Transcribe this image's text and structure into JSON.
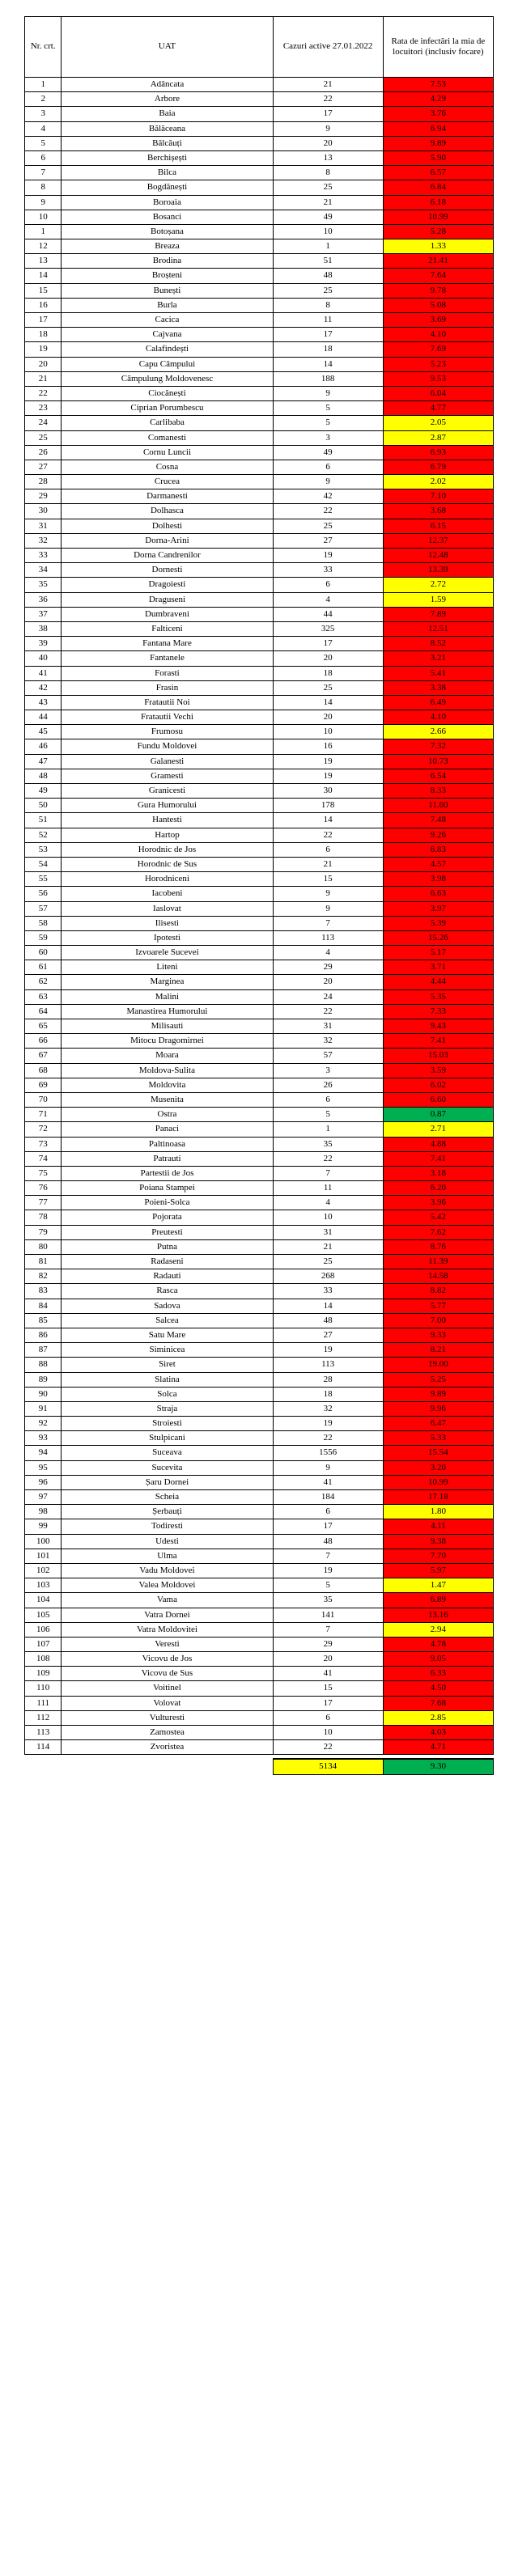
{
  "headers": {
    "nr": "Nr. crt.",
    "uat": "UAT",
    "cases": "Cazuri active 27.01.2022",
    "rate": "Rata de infectări la mia de locuitori (inclusiv focare)"
  },
  "colors": {
    "red": "#ff0000",
    "yellow": "#ffff00",
    "green": "#00b050"
  },
  "total": {
    "cases": 5134,
    "rate": "9.30",
    "casesColor": "yellow",
    "rateColor": "green"
  },
  "rows": [
    {
      "nr": 1,
      "uat": "Adâncata",
      "cases": 21,
      "rate": "7.53",
      "c": "red"
    },
    {
      "nr": 2,
      "uat": "Arbore",
      "cases": 22,
      "rate": "4.29",
      "c": "red"
    },
    {
      "nr": 3,
      "uat": "Baia",
      "cases": 17,
      "rate": "3.76",
      "c": "red"
    },
    {
      "nr": 4,
      "uat": "Bălăceana",
      "cases": 9,
      "rate": "6.94",
      "c": "red"
    },
    {
      "nr": 5,
      "uat": "Bălcăuți",
      "cases": 20,
      "rate": "9.89",
      "c": "red"
    },
    {
      "nr": 6,
      "uat": "Berchișești",
      "cases": 13,
      "rate": "5.90",
      "c": "red"
    },
    {
      "nr": 7,
      "uat": "Bilca",
      "cases": 8,
      "rate": "6.57",
      "c": "red"
    },
    {
      "nr": 8,
      "uat": "Bogdănești",
      "cases": 25,
      "rate": "6.84",
      "c": "red"
    },
    {
      "nr": 9,
      "uat": "Boroaia",
      "cases": 21,
      "rate": "6.18",
      "c": "red"
    },
    {
      "nr": 10,
      "uat": "Bosanci",
      "cases": 49,
      "rate": "10.99",
      "c": "red"
    },
    {
      "nr": 1,
      "uat": "Botoșana",
      "cases": 10,
      "rate": "5.28",
      "c": "red"
    },
    {
      "nr": 12,
      "uat": "Breaza",
      "cases": 1,
      "rate": "1.33",
      "c": "yellow"
    },
    {
      "nr": 13,
      "uat": "Brodina",
      "cases": 51,
      "rate": "21.41",
      "c": "red"
    },
    {
      "nr": 14,
      "uat": "Broșteni",
      "cases": 48,
      "rate": "7.64",
      "c": "red"
    },
    {
      "nr": 15,
      "uat": "Bunești",
      "cases": 25,
      "rate": "9.78",
      "c": "red"
    },
    {
      "nr": 16,
      "uat": "Burla",
      "cases": 8,
      "rate": "5.08",
      "c": "red"
    },
    {
      "nr": 17,
      "uat": "Cacica",
      "cases": 11,
      "rate": "3.69",
      "c": "red"
    },
    {
      "nr": 18,
      "uat": "Cajvana",
      "cases": 17,
      "rate": "4.10",
      "c": "red"
    },
    {
      "nr": 19,
      "uat": "Calafindești",
      "cases": 18,
      "rate": "7.69",
      "c": "red"
    },
    {
      "nr": 20,
      "uat": "Capu Câmpului",
      "cases": 14,
      "rate": "5.23",
      "c": "red"
    },
    {
      "nr": 21,
      "uat": "Câmpulung Moldovenesc",
      "cases": 188,
      "rate": "9.53",
      "c": "red"
    },
    {
      "nr": 22,
      "uat": "Ciocănești",
      "cases": 9,
      "rate": "6.04",
      "c": "red"
    },
    {
      "nr": 23,
      "uat": "Ciprian Porumbescu",
      "cases": 5,
      "rate": "4.77",
      "c": "red"
    },
    {
      "nr": 24,
      "uat": "Carlibaba",
      "cases": 5,
      "rate": "2.05",
      "c": "yellow"
    },
    {
      "nr": 25,
      "uat": "Comanesti",
      "cases": 3,
      "rate": "2.87",
      "c": "yellow"
    },
    {
      "nr": 26,
      "uat": "Cornu Luncii",
      "cases": 49,
      "rate": "6.93",
      "c": "red"
    },
    {
      "nr": 27,
      "uat": "Cosna",
      "cases": 6,
      "rate": "6.79",
      "c": "red"
    },
    {
      "nr": 28,
      "uat": "Crucea",
      "cases": 9,
      "rate": "2.02",
      "c": "yellow"
    },
    {
      "nr": 29,
      "uat": "Darmanesti",
      "cases": 42,
      "rate": "7.10",
      "c": "red"
    },
    {
      "nr": 30,
      "uat": "Dolhasca",
      "cases": 22,
      "rate": "3.68",
      "c": "red"
    },
    {
      "nr": 31,
      "uat": "Dolhesti",
      "cases": 25,
      "rate": "6.15",
      "c": "red"
    },
    {
      "nr": 32,
      "uat": "Dorna-Arini",
      "cases": 27,
      "rate": "12.37",
      "c": "red"
    },
    {
      "nr": 33,
      "uat": "Dorna Candrenilor",
      "cases": 19,
      "rate": "12.48",
      "c": "red"
    },
    {
      "nr": 34,
      "uat": "Dornesti",
      "cases": 33,
      "rate": "13.39",
      "c": "red"
    },
    {
      "nr": 35,
      "uat": "Dragoiesti",
      "cases": 6,
      "rate": "2.72",
      "c": "yellow"
    },
    {
      "nr": 36,
      "uat": "Draguseni",
      "cases": 4,
      "rate": "1.59",
      "c": "yellow"
    },
    {
      "nr": 37,
      "uat": "Dumbraveni",
      "cases": 44,
      "rate": "7.89",
      "c": "red"
    },
    {
      "nr": 38,
      "uat": "Falticeni",
      "cases": 325,
      "rate": "12.51",
      "c": "red"
    },
    {
      "nr": 39,
      "uat": "Fantana Mare",
      "cases": 17,
      "rate": "8.52",
      "c": "red"
    },
    {
      "nr": 40,
      "uat": "Fantanele",
      "cases": 20,
      "rate": "3.21",
      "c": "red"
    },
    {
      "nr": 41,
      "uat": "Forasti",
      "cases": 18,
      "rate": "5.41",
      "c": "red"
    },
    {
      "nr": 42,
      "uat": "Frasin",
      "cases": 25,
      "rate": "3.38",
      "c": "red"
    },
    {
      "nr": 43,
      "uat": "Fratautii Noi",
      "cases": 14,
      "rate": "6.49",
      "c": "red"
    },
    {
      "nr": 44,
      "uat": "Fratautii Vechi",
      "cases": 20,
      "rate": "4.10",
      "c": "red"
    },
    {
      "nr": 45,
      "uat": "Frumosu",
      "cases": 10,
      "rate": "2.66",
      "c": "yellow"
    },
    {
      "nr": 46,
      "uat": "Fundu Moldovei",
      "cases": 16,
      "rate": "7.32",
      "c": "red"
    },
    {
      "nr": 47,
      "uat": "Galanesti",
      "cases": 19,
      "rate": "10.73",
      "c": "red"
    },
    {
      "nr": 48,
      "uat": "Gramesti",
      "cases": 19,
      "rate": "6.54",
      "c": "red"
    },
    {
      "nr": 49,
      "uat": "Granicesti",
      "cases": 30,
      "rate": "8.33",
      "c": "red"
    },
    {
      "nr": 50,
      "uat": "Gura Humorului",
      "cases": 178,
      "rate": "11.60",
      "c": "red"
    },
    {
      "nr": 51,
      "uat": "Hantesti",
      "cases": 14,
      "rate": "7.48",
      "c": "red"
    },
    {
      "nr": 52,
      "uat": "Hartop",
      "cases": 22,
      "rate": "9.26",
      "c": "red"
    },
    {
      "nr": 53,
      "uat": "Horodnic de Jos",
      "cases": 6,
      "rate": "6.83",
      "c": "red"
    },
    {
      "nr": 54,
      "uat": "Horodnic de Sus",
      "cases": 21,
      "rate": "4.57",
      "c": "red"
    },
    {
      "nr": 55,
      "uat": "Horodniceni",
      "cases": 15,
      "rate": "3.98",
      "c": "red"
    },
    {
      "nr": 56,
      "uat": "Iacobeni",
      "cases": 9,
      "rate": "6.63",
      "c": "red"
    },
    {
      "nr": 57,
      "uat": "Iaslovat",
      "cases": 9,
      "rate": "3.97",
      "c": "red"
    },
    {
      "nr": 58,
      "uat": "Ilisesti",
      "cases": 7,
      "rate": "5.39",
      "c": "red"
    },
    {
      "nr": 59,
      "uat": "Ipotesti",
      "cases": 113,
      "rate": "15.26",
      "c": "red"
    },
    {
      "nr": 60,
      "uat": "Izvoarele Sucevei",
      "cases": 4,
      "rate": "5.17",
      "c": "red"
    },
    {
      "nr": 61,
      "uat": "Liteni",
      "cases": 29,
      "rate": "3.71",
      "c": "red"
    },
    {
      "nr": 62,
      "uat": "Marginea",
      "cases": 20,
      "rate": "4.44",
      "c": "red"
    },
    {
      "nr": 63,
      "uat": "Malini",
      "cases": 24,
      "rate": "5.35",
      "c": "red"
    },
    {
      "nr": 64,
      "uat": "Manastirea Humorului",
      "cases": 22,
      "rate": "7.33",
      "c": "red"
    },
    {
      "nr": 65,
      "uat": "Milisauti",
      "cases": 31,
      "rate": "9.43",
      "c": "red"
    },
    {
      "nr": 66,
      "uat": "Mitocu Dragomirnei",
      "cases": 32,
      "rate": "7.41",
      "c": "red"
    },
    {
      "nr": 67,
      "uat": "Moara",
      "cases": 57,
      "rate": "15.03",
      "c": "red"
    },
    {
      "nr": 68,
      "uat": "Moldova-Sulita",
      "cases": 3,
      "rate": "3.59",
      "c": "red"
    },
    {
      "nr": 69,
      "uat": "Moldovita",
      "cases": 26,
      "rate": "6.02",
      "c": "red"
    },
    {
      "nr": 70,
      "uat": "Musenita",
      "cases": 6,
      "rate": "6.60",
      "c": "red"
    },
    {
      "nr": 71,
      "uat": "Ostra",
      "cases": 5,
      "rate": "0.87",
      "c": "green"
    },
    {
      "nr": 72,
      "uat": "Panaci",
      "cases": 1,
      "rate": "2.71",
      "c": "yellow"
    },
    {
      "nr": 73,
      "uat": "Paltinoasa",
      "cases": 35,
      "rate": "4.88",
      "c": "red"
    },
    {
      "nr": 74,
      "uat": "Patrauti",
      "cases": 22,
      "rate": "7.41",
      "c": "red"
    },
    {
      "nr": 75,
      "uat": "Partestii de Jos",
      "cases": 7,
      "rate": "3.18",
      "c": "red"
    },
    {
      "nr": 76,
      "uat": "Poiana Stampei",
      "cases": 11,
      "rate": "6.20",
      "c": "red"
    },
    {
      "nr": 77,
      "uat": "Poieni-Solca",
      "cases": 4,
      "rate": "3.96",
      "c": "red"
    },
    {
      "nr": 78,
      "uat": "Pojorata",
      "cases": 10,
      "rate": "5.42",
      "c": "red"
    },
    {
      "nr": 79,
      "uat": "Preutesti",
      "cases": 31,
      "rate": "7.62",
      "c": "red"
    },
    {
      "nr": 80,
      "uat": "Putna",
      "cases": 21,
      "rate": "8.76",
      "c": "red"
    },
    {
      "nr": 81,
      "uat": "Radaseni",
      "cases": 25,
      "rate": "11.39",
      "c": "red"
    },
    {
      "nr": 82,
      "uat": "Radauti",
      "cases": 268,
      "rate": "14.58",
      "c": "red"
    },
    {
      "nr": 83,
      "uat": "Rasca",
      "cases": 33,
      "rate": "8.82",
      "c": "red"
    },
    {
      "nr": 84,
      "uat": "Sadova",
      "cases": 14,
      "rate": "5.77",
      "c": "red"
    },
    {
      "nr": 85,
      "uat": "Salcea",
      "cases": 48,
      "rate": "7.00",
      "c": "red"
    },
    {
      "nr": 86,
      "uat": "Satu Mare",
      "cases": 27,
      "rate": "9.33",
      "c": "red"
    },
    {
      "nr": 87,
      "uat": "Siminicea",
      "cases": 19,
      "rate": "8.21",
      "c": "red"
    },
    {
      "nr": 88,
      "uat": "Siret",
      "cases": 113,
      "rate": "19.00",
      "c": "red"
    },
    {
      "nr": 89,
      "uat": "Slatina",
      "cases": 28,
      "rate": "5.25",
      "c": "red"
    },
    {
      "nr": 90,
      "uat": "Solca",
      "cases": 18,
      "rate": "9.89",
      "c": "red"
    },
    {
      "nr": 91,
      "uat": "Straja",
      "cases": 32,
      "rate": "9.96",
      "c": "red"
    },
    {
      "nr": 92,
      "uat": "Stroiesti",
      "cases": 19,
      "rate": "6.47",
      "c": "red"
    },
    {
      "nr": 93,
      "uat": "Stulpicani",
      "cases": 22,
      "rate": "5.33",
      "c": "red"
    },
    {
      "nr": 94,
      "uat": "Suceava",
      "cases": 1556,
      "rate": "15.54",
      "c": "red"
    },
    {
      "nr": 95,
      "uat": "Sucevita",
      "cases": 9,
      "rate": "3.20",
      "c": "red"
    },
    {
      "nr": 96,
      "uat": "Șaru Dornei",
      "cases": 41,
      "rate": "10.99",
      "c": "red"
    },
    {
      "nr": 97,
      "uat": "Scheia",
      "cases": 184,
      "rate": "17.18",
      "c": "red"
    },
    {
      "nr": 98,
      "uat": "Șerbauți",
      "cases": 6,
      "rate": "1.80",
      "c": "yellow"
    },
    {
      "nr": 99,
      "uat": "Todiresti",
      "cases": 17,
      "rate": "4.11",
      "c": "red"
    },
    {
      "nr": 100,
      "uat": "Udesti",
      "cases": 48,
      "rate": "9.38",
      "c": "red"
    },
    {
      "nr": 101,
      "uat": "Ulma",
      "cases": 7,
      "rate": "7.70",
      "c": "red"
    },
    {
      "nr": 102,
      "uat": "Vadu Moldovei",
      "cases": 19,
      "rate": "5.97",
      "c": "red"
    },
    {
      "nr": 103,
      "uat": "Valea Moldovei",
      "cases": 5,
      "rate": "1.47",
      "c": "yellow"
    },
    {
      "nr": 104,
      "uat": "Vama",
      "cases": 35,
      "rate": "6.89",
      "c": "red"
    },
    {
      "nr": 105,
      "uat": "Vatra Dornei",
      "cases": 141,
      "rate": "13.16",
      "c": "red"
    },
    {
      "nr": 106,
      "uat": "Vatra Moldovitei",
      "cases": 7,
      "rate": "2.94",
      "c": "yellow"
    },
    {
      "nr": 107,
      "uat": "Veresti",
      "cases": 29,
      "rate": "4.78",
      "c": "red"
    },
    {
      "nr": 108,
      "uat": "Vicovu de Jos",
      "cases": 20,
      "rate": "9.05",
      "c": "red"
    },
    {
      "nr": 109,
      "uat": "Vicovu de Sus",
      "cases": 41,
      "rate": "6.33",
      "c": "red"
    },
    {
      "nr": 110,
      "uat": "Voitinel",
      "cases": 15,
      "rate": "4.50",
      "c": "red"
    },
    {
      "nr": 111,
      "uat": "Volovat",
      "cases": 17,
      "rate": "7.68",
      "c": "red"
    },
    {
      "nr": 112,
      "uat": "Vulturesti",
      "cases": 6,
      "rate": "2.85",
      "c": "yellow"
    },
    {
      "nr": 113,
      "uat": "Zamostea",
      "cases": 10,
      "rate": "4.03",
      "c": "red"
    },
    {
      "nr": 114,
      "uat": "Zvoristea",
      "cases": 22,
      "rate": "4.71",
      "c": "red"
    }
  ]
}
